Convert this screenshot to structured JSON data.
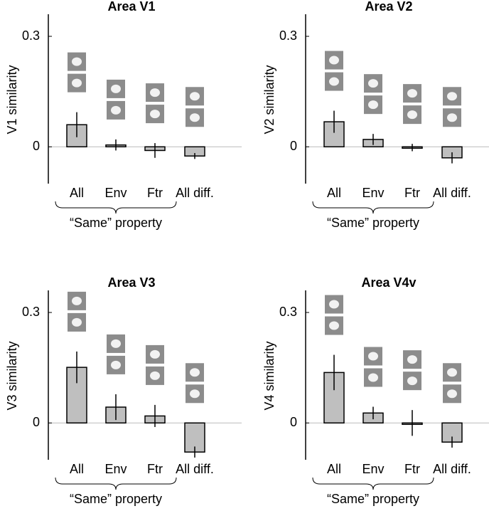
{
  "chart_data": [
    {
      "type": "bar",
      "title": "Area V1",
      "ylabel": "V1 similarity",
      "categories": [
        "All",
        "Env",
        "Ftr",
        "All diff."
      ],
      "values": [
        0.06,
        0.005,
        -0.01,
        -0.025
      ],
      "errors": [
        0.034,
        0.015,
        0.02,
        0.008
      ],
      "color": "#bfbfbf",
      "ylim": [
        -0.1,
        0.36
      ],
      "yticks": [
        0,
        0.3
      ],
      "zero_line": true,
      "brace_label": "“Same” property"
    },
    {
      "type": "bar",
      "title": "Area V2",
      "ylabel": "V2 similarity",
      "categories": [
        "All",
        "Env",
        "Ftr",
        "All diff."
      ],
      "values": [
        0.068,
        0.02,
        -0.002,
        -0.03
      ],
      "errors": [
        0.03,
        0.015,
        0.01,
        0.015
      ],
      "color": "#bfbfbf",
      "ylim": [
        -0.1,
        0.36
      ],
      "yticks": [
        0,
        0.3
      ],
      "zero_line": true,
      "brace_label": "“Same” property"
    },
    {
      "type": "bar",
      "title": "Area V3",
      "ylabel": "V3 similarity",
      "categories": [
        "All",
        "Env",
        "Ftr",
        "All diff."
      ],
      "values": [
        0.151,
        0.043,
        0.019,
        -0.079
      ],
      "errors": [
        0.043,
        0.035,
        0.03,
        0.015
      ],
      "color": "#bfbfbf",
      "ylim": [
        -0.1,
        0.36
      ],
      "yticks": [
        0,
        0.3
      ],
      "zero_line": true,
      "brace_label": "“Same” property"
    },
    {
      "type": "bar",
      "title": "Area V4v",
      "ylabel": "V4 similarity",
      "categories": [
        "All",
        "Env",
        "Ftr",
        "All diff."
      ],
      "values": [
        0.137,
        0.027,
        0.0,
        -0.052
      ],
      "errors": [
        0.048,
        0.017,
        0.035,
        0.015
      ],
      "color": "#bfbfbf",
      "ylim": [
        -0.1,
        0.36
      ],
      "yticks": [
        0,
        0.3
      ],
      "zero_line": true,
      "brace_label": "“Same” property"
    }
  ]
}
